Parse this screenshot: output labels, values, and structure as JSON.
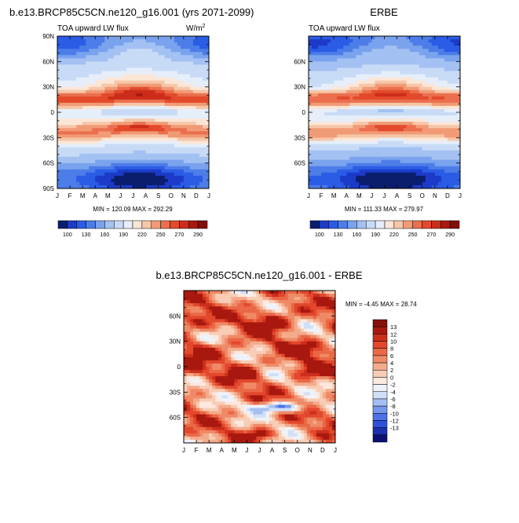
{
  "colors": {
    "cb_abs": [
      "#0b1e6e",
      "#1c3bc8",
      "#2a5ce6",
      "#4d7de8",
      "#7aa3ee",
      "#a3c1f2",
      "#c8dbf6",
      "#e6eefa",
      "#fbe6d6",
      "#f6c6a8",
      "#f19b76",
      "#eb6f4e",
      "#e34a2c",
      "#cc2d1a",
      "#a81a0f",
      "#820f0a"
    ],
    "cb_diff": [
      "#0b1173",
      "#1b2fb0",
      "#2e4fdb",
      "#4b72e8",
      "#7598ec",
      "#a6bff2",
      "#d2e0f7",
      "#eef3fb",
      "#fce8de",
      "#f8ccb5",
      "#f4ab8c",
      "#ef8a66",
      "#ea6846",
      "#e3472c",
      "#cc2f1c",
      "#a8180f",
      "#86100a"
    ]
  },
  "chart_data": [
    {
      "type": "heatmap",
      "title": "b.e13.BRCP85C5CN.ne120_g16.001 (yrs 2071-2099)",
      "subtitle_left": "TOA upward LW flux",
      "units": "W/m",
      "units_sup": "2",
      "x": [
        "J",
        "F",
        "M",
        "A",
        "M",
        "J",
        "J",
        "A",
        "S",
        "O",
        "N",
        "D",
        "J"
      ],
      "y_ticks": [
        "90N",
        "60N",
        "30N",
        "0",
        "30S",
        "60S",
        "90S"
      ],
      "stats": "MIN = 120.09 MAX = 292.29",
      "min": 120.09,
      "max": 292.29,
      "colorbar_labels": [
        "100",
        "130",
        "160",
        "190",
        "220",
        "250",
        "270",
        "290"
      ],
      "levels": [
        100,
        115,
        130,
        145,
        160,
        175,
        190,
        205,
        220,
        235,
        250,
        260,
        270,
        280,
        290
      ]
    },
    {
      "type": "heatmap",
      "title": "ERBE",
      "subtitle_left": "TOA upward LW flux",
      "x": [
        "J",
        "F",
        "M",
        "A",
        "M",
        "J",
        "J",
        "A",
        "S",
        "O",
        "N",
        "D",
        "J"
      ],
      "y_ticks": [
        "60N",
        "30N",
        "0",
        "30S",
        "60S"
      ],
      "stats": "MIN = 111.33 MAX = 279.97",
      "min": 111.33,
      "max": 279.97,
      "colorbar_labels": [
        "100",
        "130",
        "160",
        "190",
        "220",
        "250",
        "270",
        "290"
      ],
      "levels": [
        100,
        115,
        130,
        145,
        160,
        175,
        190,
        205,
        220,
        235,
        250,
        260,
        270,
        280,
        290
      ]
    },
    {
      "type": "heatmap",
      "title": "b.e13.BRCP85C5CN.ne120_g16.001 - ERBE",
      "x": [
        "J",
        "F",
        "M",
        "A",
        "M",
        "J",
        "J",
        "A",
        "S",
        "O",
        "N",
        "D",
        "J"
      ],
      "y_ticks": [
        "60N",
        "30N",
        "0",
        "30S",
        "60S"
      ],
      "stats": "MIN = -4.45 MAX =  28.74",
      "min": -4.45,
      "max": 28.74,
      "colorbar_labels": [
        "13",
        "12",
        "10",
        "8",
        "6",
        "4",
        "2",
        "0",
        "-2",
        "-4",
        "-6",
        "-8",
        "-10",
        "-12",
        "-13"
      ],
      "levels": [
        -13,
        -12,
        -10,
        -8,
        -6,
        -4,
        -2,
        0,
        2,
        4,
        6,
        8,
        10,
        12,
        13
      ]
    }
  ]
}
